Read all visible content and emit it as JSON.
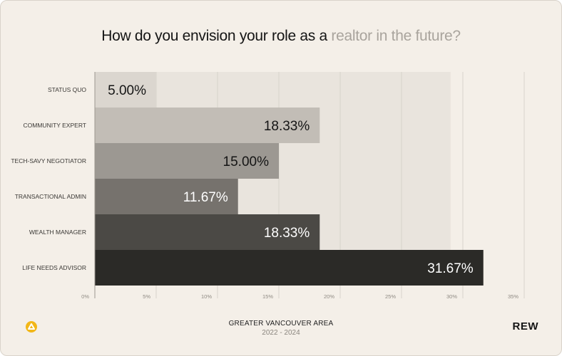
{
  "title": {
    "main": "How do you envision your role as a",
    "accent": "realtor in the future?"
  },
  "footer": {
    "area": "GREATER VANCOUVER AREA",
    "years": "2022 - 2024",
    "brand": "REW"
  },
  "icons": {
    "logo": "yellow-circle-triangle-icon"
  },
  "colors": {
    "background": "#f4efe8",
    "accent_text": "#a9a49d",
    "logo": "#f2b718"
  },
  "chart_data": {
    "type": "bar",
    "orientation": "horizontal",
    "title": "How do you envision your role as a realtor in the future?",
    "categories": [
      "STATUS QUO",
      "COMMUNITY EXPERT",
      "TECH-SAVY NEGOTIATOR",
      "TRANSACTIONAL ADMIN",
      "WEALTH MANAGER",
      "LIFE NEEDS ADVISOR"
    ],
    "values": [
      5.0,
      18.33,
      15.0,
      11.67,
      18.33,
      31.67
    ],
    "value_labels": [
      "5.00%",
      "18.33%",
      "15.00%",
      "11.67%",
      "18.33%",
      "31.67%"
    ],
    "bar_colors": [
      "#dbd6cf",
      "#c2bdb6",
      "#9c9892",
      "#76726d",
      "#4b4945",
      "#2b2a27"
    ],
    "label_colors": [
      "#151515",
      "#151515",
      "#151515",
      "#ffffff",
      "#ffffff",
      "#ffffff"
    ],
    "x_ticks": [
      "0%",
      "5%",
      "10%",
      "15%",
      "20%",
      "25%",
      "30%",
      "35%"
    ],
    "xlim": [
      0,
      35
    ],
    "grid": true
  }
}
